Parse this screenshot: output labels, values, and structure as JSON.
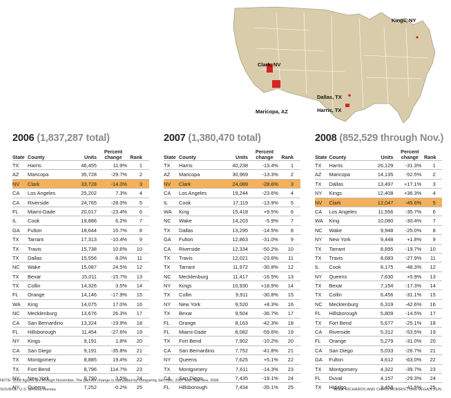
{
  "map": {
    "labels": {
      "kings": "Kings, NY",
      "clark": "Clark, NV",
      "dallas": "Dallas, TX",
      "maricopa": "Maricopa, AZ",
      "harris": "Harris, TX"
    },
    "colors": {
      "land": "#d8ccaa",
      "highlight": "#d32525",
      "water": "#ffffff"
    }
  },
  "chart_data": [
    {
      "type": "table",
      "year": "2006",
      "total": "(1,837,287 total)",
      "columns": [
        "State",
        "County",
        "Units",
        "Percent change",
        "Rank"
      ],
      "highlight_row": 2,
      "rows": [
        [
          "TX",
          "Harris",
          "46,455",
          "11.9%",
          "1"
        ],
        [
          "AZ",
          "Maricopa",
          "35,728",
          "-29.7%",
          "2"
        ],
        [
          "NV",
          "Clark",
          "33,728",
          "-14.0%",
          "3"
        ],
        [
          "CA",
          "Los Angeles",
          "25,202",
          "7.3%",
          "4"
        ],
        [
          "CA",
          "Riverside",
          "24,765",
          "-28.0%",
          "5"
        ],
        [
          "FL",
          "Miami-Dade",
          "20,017",
          "-23.4%",
          "6"
        ],
        [
          "IL",
          "Cook",
          "19,886",
          "6.2%",
          "7"
        ],
        [
          "GA",
          "Fulton",
          "18,644",
          "15.7%",
          "8"
        ],
        [
          "TX",
          "Tarrant",
          "17,313",
          "-10.4%",
          "9"
        ],
        [
          "TX",
          "Travis",
          "15,738",
          "10.6%",
          "10"
        ],
        [
          "TX",
          "Dallas",
          "15,556",
          "8.0%",
          "11"
        ],
        [
          "NC",
          "Wake",
          "15,087",
          "24.5%",
          "12"
        ],
        [
          "TX",
          "Bexar",
          "15,011",
          "-15.7%",
          "13"
        ],
        [
          "TX",
          "Collin",
          "14,326",
          "3.5%",
          "14"
        ],
        [
          "FL",
          "Orange",
          "14,146",
          "-17.9%",
          "15"
        ],
        [
          "WA",
          "King",
          "14,075",
          "17.0%",
          "16"
        ],
        [
          "NC",
          "Mecklenburg",
          "13,676",
          "26.3%",
          "17"
        ],
        [
          "CA",
          "San Bernardino",
          "13,324",
          "-19.9%",
          "18"
        ],
        [
          "FL",
          "Hillsborough",
          "11,454",
          "-27.6%",
          "19"
        ],
        [
          "NY",
          "Kings",
          "9,191",
          "1.8%",
          "20"
        ],
        [
          "CA",
          "San Diego",
          "9,191",
          "-35.8%",
          "21"
        ],
        [
          "TX",
          "Montgomery",
          "8,885",
          "19.4%",
          "22"
        ],
        [
          "TX",
          "Fort Bend",
          "8,796",
          "114.7%",
          "23"
        ],
        [
          "NY",
          "New York",
          "8,790",
          "3.5%",
          "24"
        ],
        [
          "NY",
          "Queens",
          "7,252",
          "-0.2%",
          "25"
        ]
      ]
    },
    {
      "type": "table",
      "year": "2007",
      "total": "(1,380,470 total)",
      "columns": [
        "State",
        "County",
        "Units",
        "Percent change",
        "Rank"
      ],
      "highlight_row": 2,
      "rows": [
        [
          "TX",
          "Harris",
          "40,238",
          "-13.4%",
          "1"
        ],
        [
          "AZ",
          "Maricopa",
          "30,969",
          "-13.3%",
          "2"
        ],
        [
          "NV",
          "Clark",
          "24,089",
          "-28.6%",
          "3"
        ],
        [
          "CA",
          "Los Angeles",
          "19,244",
          "-23.6%",
          "4"
        ],
        [
          "IL",
          "Cook",
          "17,119",
          "-13.9%",
          "5"
        ],
        [
          "WA",
          "King",
          "15,418",
          "+9.5%",
          "6"
        ],
        [
          "NC",
          "Wake",
          "14,203",
          "-5.9%",
          "7"
        ],
        [
          "TX",
          "Dallas",
          "13,295",
          "-14.5%",
          "8"
        ],
        [
          "GA",
          "Fulton",
          "12,863",
          "-31.0%",
          "9"
        ],
        [
          "CA",
          "Riverside",
          "12,334",
          "-50.2%",
          "10"
        ],
        [
          "TX",
          "Travis",
          "12,021",
          "-23.6%",
          "11"
        ],
        [
          "TX",
          "Tarrant",
          "11,972",
          "-30.8%",
          "12"
        ],
        [
          "NC",
          "Mecklenburg",
          "11,417",
          "-16.5%",
          "13"
        ],
        [
          "NY",
          "Kings",
          "10,930",
          "+18.9%",
          "14"
        ],
        [
          "TX",
          "Collin",
          "9,911",
          "-30.8%",
          "15"
        ],
        [
          "NY",
          "New York",
          "9,520",
          "+8.3%",
          "16"
        ],
        [
          "TX",
          "Bexar",
          "9,504",
          "-36.7%",
          "17"
        ],
        [
          "FL",
          "Orange",
          "8,163",
          "-42.3%",
          "18"
        ],
        [
          "FL",
          "Miami-Dade",
          "8,082",
          "-59.6%",
          "19"
        ],
        [
          "TX",
          "Fort Bend",
          "7,902",
          "-10.2%",
          "20"
        ],
        [
          "CA",
          "San Bernardino",
          "7,752",
          "-41.8%",
          "21"
        ],
        [
          "NY",
          "Queens",
          "7,625",
          "+5.1%",
          "22"
        ],
        [
          "TX",
          "Montgomery",
          "7,611",
          "-14.3%",
          "23"
        ],
        [
          "CA",
          "San Diego",
          "7,435",
          "-19.1%",
          "24"
        ],
        [
          "FL",
          "Hillsborough",
          "7,434",
          "-35.1%",
          "25"
        ]
      ]
    },
    {
      "type": "table",
      "year": "2008",
      "total": "(852,529 through Nov.)",
      "columns": [
        "State",
        "County",
        "Units",
        "Percent change",
        "Rank"
      ],
      "highlight_row": 4,
      "rows": [
        [
          "TX",
          "Harris",
          "26,129",
          "-31.3%",
          "1"
        ],
        [
          "AZ",
          "Maricopa",
          "14,135",
          "-52.5%",
          "2"
        ],
        [
          "TX",
          "Dallas",
          "13,497",
          "+17.1%",
          "3"
        ],
        [
          "NY",
          "Kings",
          "12,408",
          "+36.3%",
          "4"
        ],
        [
          "NV",
          "Clark",
          "12,047",
          "-45.6%",
          "5"
        ],
        [
          "CA",
          "Los Angeles",
          "11,556",
          "-35.7%",
          "6"
        ],
        [
          "WA",
          "King",
          "10,080",
          "-30.4%",
          "7"
        ],
        [
          "NC",
          "Wake",
          "9,948",
          "-25.0%",
          "8"
        ],
        [
          "NY",
          "New York",
          "9,448",
          "+1.8%",
          "9"
        ],
        [
          "TX",
          "Tarrant",
          "8,895",
          "-19.7%",
          "10"
        ],
        [
          "TX",
          "Travis",
          "8,683",
          "-27.9%",
          "11"
        ],
        [
          "IL",
          "Cook",
          "8,175",
          "-48.3%",
          "12"
        ],
        [
          "NY",
          "Queens",
          "7,630",
          "+5.9%",
          "13"
        ],
        [
          "TX",
          "Bexar",
          "7,154",
          "-17.3%",
          "14"
        ],
        [
          "TX",
          "Collin",
          "6,456",
          "-31.1%",
          "15"
        ],
        [
          "NC",
          "Mecklenburg",
          "6,319",
          "-42.6%",
          "16"
        ],
        [
          "FL",
          "Hillsborough",
          "5,809",
          "-14.5%",
          "17"
        ],
        [
          "TX",
          "Fort Bend",
          "5,677",
          "-25.1%",
          "18"
        ],
        [
          "CA",
          "Riverside",
          "5,312",
          "-53.5%",
          "19"
        ],
        [
          "FL",
          "Orange",
          "5,279",
          "-31.0%",
          "20"
        ],
        [
          "CA",
          "San Diego",
          "5,033",
          "-26.7%",
          "21"
        ],
        [
          "GA",
          "Fulton",
          "4,612",
          "-63.0%",
          "22"
        ],
        [
          "TX",
          "Montgomery",
          "4,322",
          "-39.7%",
          "23"
        ],
        [
          "FL",
          "Duval",
          "4,157",
          "-29.3%",
          "24"
        ],
        [
          "TX",
          "Hidalgo",
          "3,458",
          "-41.5%",
          "25"
        ]
      ]
    }
  ],
  "footer": {
    "note": "NOTE: 2008 figures are through November. The percent change is calculated by comparing Jan.-Nov. 2007 with Jan.-Nov. 2008.",
    "source": "SOURCE: U.S. Census Bureau",
    "credit": "ALEX RICHARDS AND CHRIS MORRIS / LAS VEGAS SUN"
  }
}
